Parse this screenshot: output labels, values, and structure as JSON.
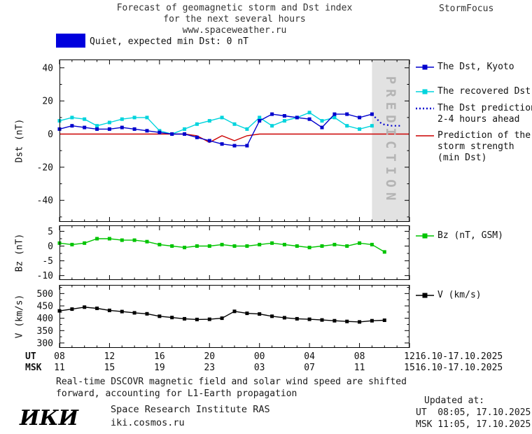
{
  "header": {
    "title_line1": "Forecast of geomagnetic storm and Dst index",
    "title_line2": "for the next several hours",
    "title_line3": "www.spaceweather.ru",
    "brand": "StormFocus"
  },
  "status": {
    "label": "Quiet, expected min Dst: 0 nT"
  },
  "colors": {
    "dst": "#0000cd",
    "recovered": "#00d4dd",
    "prediction": "#0000cd",
    "storm": "#cc0000",
    "bz": "#00c400",
    "v": "#000000",
    "status_swatch": "#0000dd",
    "band": "#e2e2e2",
    "band_text": "#b4b4b4"
  },
  "prediction_band_label": "PREDICTION",
  "legend": {
    "dst": "The Dst, Kyoto",
    "recovered": "The recovered Dst",
    "prediction_line1": "The Dst prediction",
    "prediction_line2": "2-4 hours ahead",
    "storm_line1": "Prediction of the",
    "storm_line2": "storm strength",
    "storm_line3": "(min Dst)",
    "bz": "Bz (nT, GSM)",
    "v": "V (km/s)"
  },
  "xaxis": {
    "ut_label": "UT",
    "msk_label": "MSK",
    "ut_ticks": [
      "08",
      "12",
      "16",
      "20",
      "00",
      "04",
      "08",
      "12"
    ],
    "msk_ticks": [
      "11",
      "15",
      "19",
      "23",
      "03",
      "07",
      "11",
      "15"
    ],
    "ut_date": "16.10-17.10.2025",
    "msk_date": "16.10-17.10.2025"
  },
  "footnote": {
    "line1": "Real-time DSCOVR magnetic field and solar wind speed are shifted",
    "line2": "forward, accounting for L1-Earth propagation"
  },
  "footer": {
    "logo": "ИКИ",
    "institute": "Space Research Institute RAS",
    "site": "iki.cosmos.ru",
    "updated_label": "Updated at:",
    "updated_ut": "UT  08:05, 17.10.2025",
    "updated_msk": "MSK 11:05, 17.10.2025"
  },
  "chart_data": [
    {
      "type": "line",
      "name": "Dst",
      "ylabel": "Dst (nT)",
      "xlim": [
        8,
        36
      ],
      "ylim": [
        -53,
        45
      ],
      "yticks": [
        40,
        20,
        0,
        -20,
        -40
      ],
      "yminor": 10,
      "xticks": [
        8,
        12,
        16,
        20,
        24,
        28,
        32,
        36
      ],
      "prediction_band": [
        33,
        36
      ],
      "legend_position": "right",
      "series": [
        {
          "name": "The Dst, Kyoto",
          "color": "#0000cd",
          "marker": "square",
          "x": [
            8,
            9,
            10,
            11,
            12,
            13,
            14,
            15,
            16,
            17,
            18,
            19,
            20,
            21,
            22,
            23,
            24,
            25,
            26,
            27,
            28,
            29,
            30,
            31,
            32,
            33
          ],
          "y": [
            3,
            5,
            4,
            3,
            3,
            4,
            3,
            2,
            1,
            0,
            0,
            -2,
            -4,
            -6,
            -7,
            -7,
            8,
            12,
            11,
            10,
            9,
            4,
            12,
            12,
            10,
            12
          ]
        },
        {
          "name": "The recovered Dst",
          "color": "#00d4dd",
          "marker": "square",
          "x": [
            8,
            9,
            10,
            11,
            12,
            13,
            14,
            15,
            16,
            17,
            18,
            19,
            20,
            21,
            22,
            23,
            24,
            25,
            26,
            27,
            28,
            29,
            30,
            31,
            32,
            33
          ],
          "y": [
            8,
            10,
            9,
            5,
            7,
            9,
            10,
            10,
            2,
            0,
            3,
            6,
            8,
            10,
            6,
            3,
            10,
            5,
            8,
            10,
            13,
            8,
            10,
            5,
            3,
            5
          ]
        },
        {
          "name": "The Dst prediction 2-4 hours ahead",
          "color": "#0000cd",
          "style": "dotted",
          "x": [
            33,
            33.8,
            34.6,
            35.4
          ],
          "y": [
            12,
            6,
            5,
            5
          ]
        },
        {
          "name": "Prediction of the storm strength (min Dst)",
          "color": "#cc0000",
          "x": [
            8,
            18,
            19,
            20,
            21,
            22,
            23,
            24,
            36
          ],
          "y": [
            0,
            0,
            -1,
            -5,
            -1,
            -4,
            -1,
            0,
            0
          ]
        }
      ]
    },
    {
      "type": "line",
      "name": "Bz",
      "ylabel": "Bz (nT)",
      "xlim": [
        8,
        36
      ],
      "ylim": [
        -11.5,
        7
      ],
      "yticks": [
        5,
        0,
        -5,
        -10
      ],
      "yminor": 2.5,
      "xticks": [
        8,
        12,
        16,
        20,
        24,
        28,
        32,
        36
      ],
      "series": [
        {
          "name": "Bz (nT, GSM)",
          "color": "#00c400",
          "marker": "square",
          "x": [
            8,
            9,
            10,
            11,
            12,
            13,
            14,
            15,
            16,
            17,
            18,
            19,
            20,
            21,
            22,
            23,
            24,
            25,
            26,
            27,
            28,
            29,
            30,
            31,
            32,
            33,
            34
          ],
          "y": [
            1,
            0.5,
            1,
            2.5,
            2.5,
            2,
            2,
            1.5,
            0.5,
            0,
            -0.5,
            0,
            0,
            0.5,
            0,
            0,
            0.5,
            1,
            0.5,
            0,
            -0.5,
            0,
            0.5,
            0,
            1,
            0.5,
            -2
          ]
        }
      ]
    },
    {
      "type": "line",
      "name": "V",
      "ylabel": "V (km/s)",
      "xlim": [
        8,
        36
      ],
      "ylim": [
        280,
        535
      ],
      "yticks": [
        500,
        450,
        400,
        350,
        300
      ],
      "yminor": 25,
      "xticks": [
        8,
        12,
        16,
        20,
        24,
        28,
        32,
        36
      ],
      "series": [
        {
          "name": "V (km/s)",
          "color": "#000000",
          "marker": "square",
          "x": [
            8,
            9,
            10,
            11,
            12,
            13,
            14,
            15,
            16,
            17,
            18,
            19,
            20,
            21,
            22,
            23,
            24,
            25,
            26,
            27,
            28,
            29,
            30,
            31,
            32,
            33,
            34
          ],
          "y": [
            430,
            437,
            445,
            440,
            432,
            427,
            422,
            418,
            408,
            403,
            398,
            395,
            396,
            400,
            428,
            420,
            417,
            408,
            402,
            398,
            396,
            393,
            390,
            387,
            385,
            390,
            392
          ]
        }
      ]
    }
  ]
}
